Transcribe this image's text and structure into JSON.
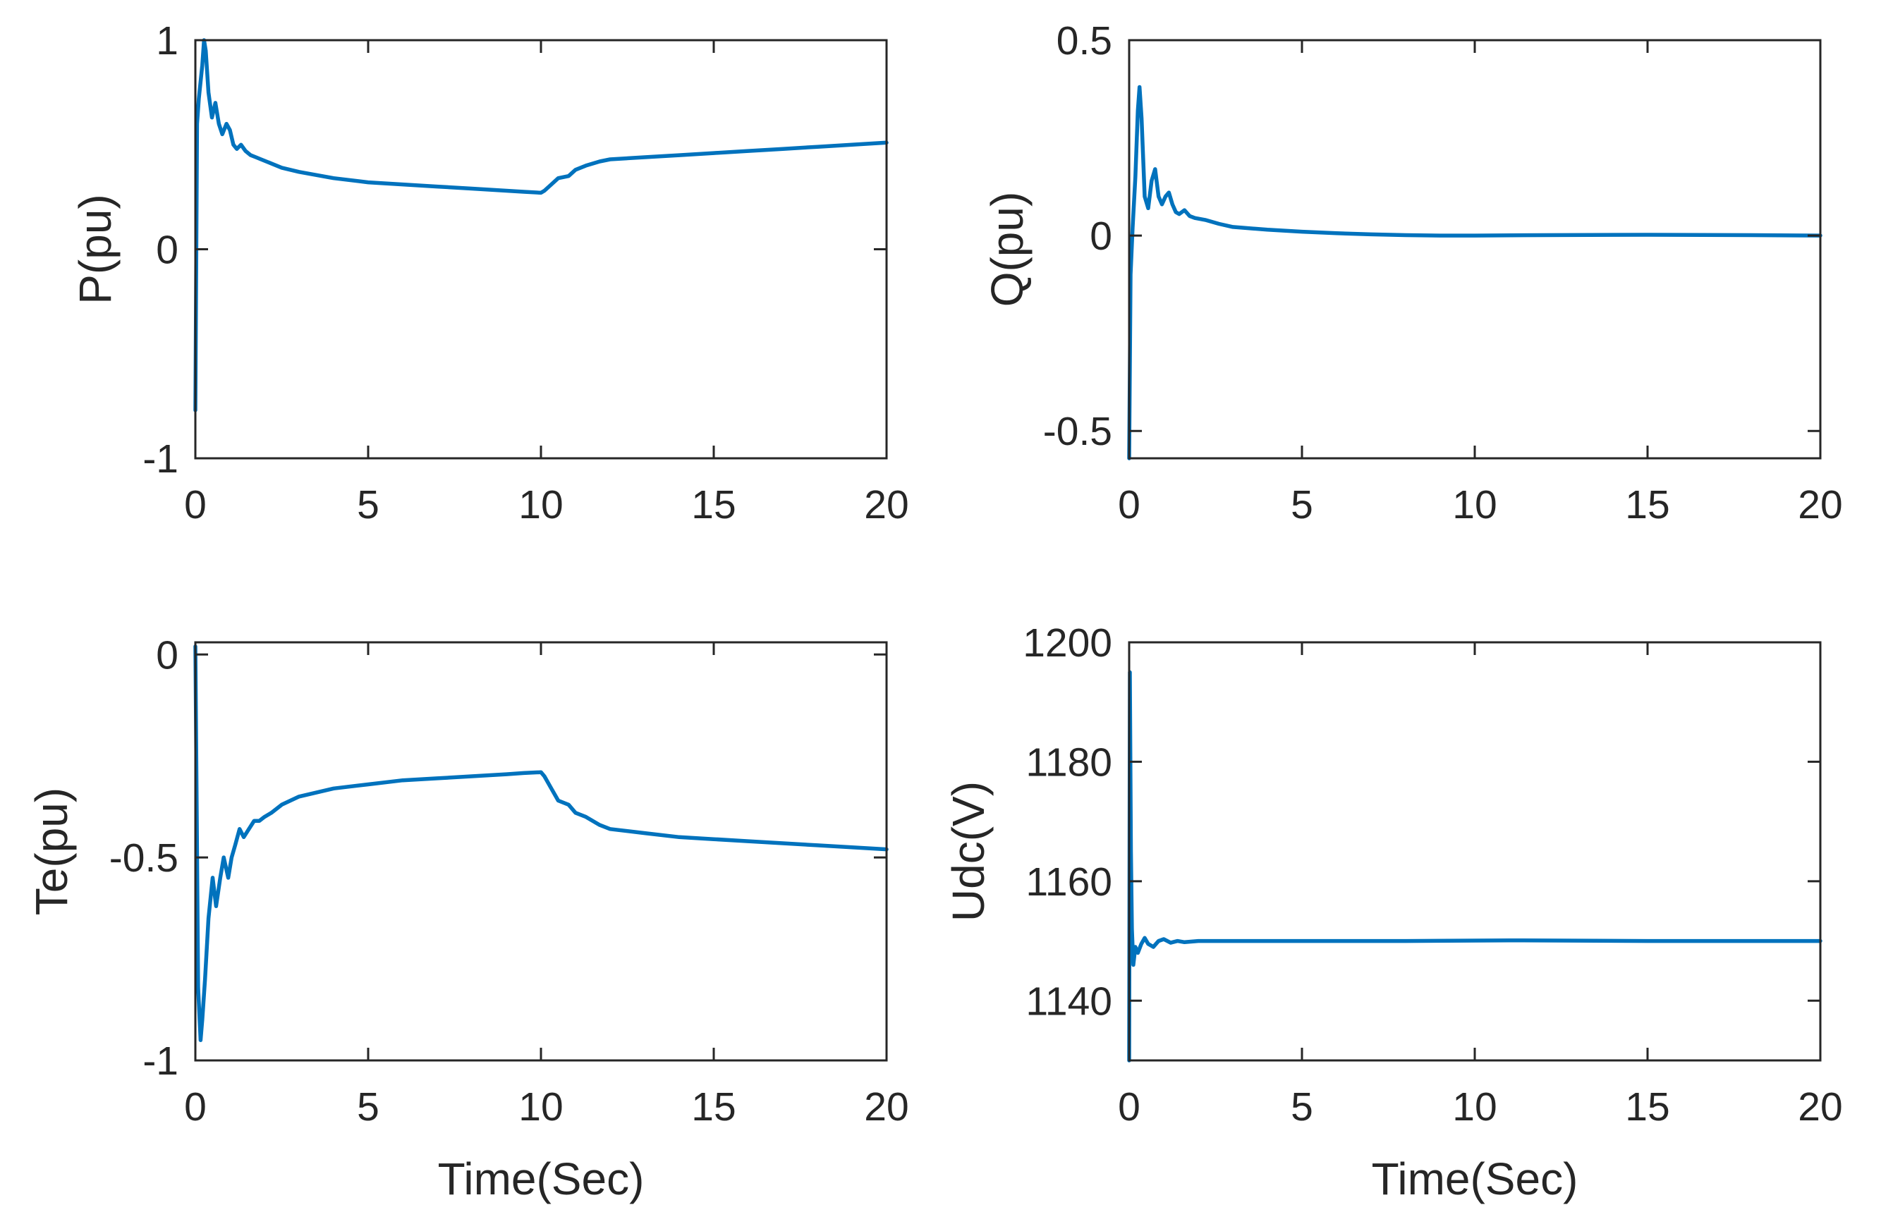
{
  "colors": {
    "line": "#0072BD",
    "axes": "#262626",
    "background": "#ffffff"
  },
  "chart_data": [
    {
      "type": "line",
      "xlabel": "",
      "ylabel": "P(pu)",
      "xlim": [
        0,
        20
      ],
      "ylim": [
        -1,
        1
      ],
      "xticks": [
        0,
        5,
        10,
        15,
        20
      ],
      "xtick_labels": [
        "0",
        "5",
        "10",
        "15",
        "20"
      ],
      "yticks": [
        -1,
        0,
        1
      ],
      "ytick_labels": [
        "-1",
        "0",
        "1"
      ],
      "series": [
        {
          "name": "P",
          "x": [
            0,
            0.05,
            0.1,
            0.2,
            0.25,
            0.3,
            0.38,
            0.48,
            0.58,
            0.68,
            0.78,
            0.9,
            1.0,
            1.1,
            1.2,
            1.32,
            1.45,
            1.6,
            1.75,
            1.9,
            2.2,
            2.5,
            3.0,
            4.0,
            5.0,
            6.0,
            7.0,
            8.0,
            9.0,
            9.5,
            10.0,
            10.1,
            10.3,
            10.5,
            10.8,
            11.0,
            11.3,
            11.7,
            12.0,
            13.0,
            14.0,
            15.0,
            16.0,
            17.0,
            18.0,
            19.0,
            20.0
          ],
          "y": [
            -0.77,
            0.6,
            0.72,
            0.88,
            1.0,
            0.95,
            0.75,
            0.63,
            0.7,
            0.6,
            0.55,
            0.6,
            0.57,
            0.5,
            0.48,
            0.5,
            0.47,
            0.45,
            0.44,
            0.43,
            0.41,
            0.39,
            0.37,
            0.34,
            0.32,
            0.31,
            0.3,
            0.29,
            0.28,
            0.275,
            0.27,
            0.28,
            0.31,
            0.34,
            0.35,
            0.38,
            0.4,
            0.42,
            0.43,
            0.44,
            0.45,
            0.46,
            0.47,
            0.48,
            0.49,
            0.5,
            0.51
          ]
        }
      ]
    },
    {
      "type": "line",
      "xlabel": "",
      "ylabel": "Q(pu)",
      "xlim": [
        0,
        20
      ],
      "ylim": [
        -0.57,
        0.5
      ],
      "xticks": [
        0,
        5,
        10,
        15,
        20
      ],
      "xtick_labels": [
        "0",
        "5",
        "10",
        "15",
        "20"
      ],
      "yticks": [
        -0.5,
        0,
        0.5
      ],
      "ytick_labels": [
        "-0.5",
        "0",
        "0.5"
      ],
      "series": [
        {
          "name": "Q",
          "x": [
            0,
            0.04,
            0.1,
            0.18,
            0.25,
            0.3,
            0.36,
            0.45,
            0.55,
            0.65,
            0.75,
            0.85,
            0.95,
            1.05,
            1.15,
            1.25,
            1.35,
            1.45,
            1.6,
            1.75,
            1.9,
            2.2,
            2.6,
            3.0,
            4.0,
            5.0,
            6.0,
            7.0,
            8.0,
            9.0,
            10.0,
            12.0,
            15.0,
            18.0,
            20.0
          ],
          "y": [
            -0.57,
            -0.1,
            0.02,
            0.15,
            0.32,
            0.38,
            0.3,
            0.1,
            0.07,
            0.14,
            0.17,
            0.1,
            0.08,
            0.1,
            0.11,
            0.08,
            0.06,
            0.055,
            0.065,
            0.05,
            0.045,
            0.04,
            0.03,
            0.022,
            0.015,
            0.01,
            0.006,
            0.003,
            0.001,
            0.0,
            0.0,
            0.001,
            0.002,
            0.001,
            0.0
          ]
        }
      ]
    },
    {
      "type": "line",
      "xlabel": "Time(Sec)",
      "ylabel": "Te(pu)",
      "xlim": [
        0,
        20
      ],
      "ylim": [
        -1,
        0.03
      ],
      "xticks": [
        0,
        5,
        10,
        15,
        20
      ],
      "xtick_labels": [
        "0",
        "5",
        "10",
        "15",
        "20"
      ],
      "yticks": [
        -1,
        -0.5,
        0
      ],
      "ytick_labels": [
        "-1",
        "-0.5",
        "0"
      ],
      "series": [
        {
          "name": "Te",
          "x": [
            0,
            0.04,
            0.08,
            0.15,
            0.2,
            0.28,
            0.38,
            0.5,
            0.6,
            0.72,
            0.82,
            0.95,
            1.05,
            1.15,
            1.28,
            1.4,
            1.55,
            1.7,
            1.85,
            2.0,
            2.2,
            2.5,
            3.0,
            4.0,
            5.0,
            6.0,
            7.0,
            8.0,
            9.0,
            9.5,
            10.0,
            10.1,
            10.3,
            10.5,
            10.8,
            11.0,
            11.3,
            11.7,
            12.0,
            13.0,
            14.0,
            15.0,
            16.0,
            17.0,
            18.0,
            19.0,
            20.0
          ],
          "y": [
            0.02,
            -0.4,
            -0.82,
            -0.95,
            -0.9,
            -0.8,
            -0.65,
            -0.55,
            -0.62,
            -0.55,
            -0.5,
            -0.55,
            -0.5,
            -0.47,
            -0.43,
            -0.45,
            -0.43,
            -0.41,
            -0.41,
            -0.4,
            -0.39,
            -0.37,
            -0.35,
            -0.33,
            -0.32,
            -0.31,
            -0.305,
            -0.3,
            -0.295,
            -0.292,
            -0.29,
            -0.3,
            -0.33,
            -0.36,
            -0.37,
            -0.39,
            -0.4,
            -0.42,
            -0.43,
            -0.44,
            -0.45,
            -0.455,
            -0.46,
            -0.465,
            -0.47,
            -0.475,
            -0.48
          ]
        }
      ]
    },
    {
      "type": "line",
      "xlabel": "Time(Sec)",
      "ylabel": "Udc(V)",
      "xlim": [
        0,
        20
      ],
      "ylim": [
        1130,
        1200
      ],
      "xticks": [
        0,
        5,
        10,
        15,
        20
      ],
      "xtick_labels": [
        "0",
        "5",
        "10",
        "15",
        "20"
      ],
      "yticks": [
        1140,
        1160,
        1180,
        1200
      ],
      "ytick_labels": [
        "1140",
        "1160",
        "1180",
        "1200"
      ],
      "series": [
        {
          "name": "Udc",
          "x": [
            0,
            0.02,
            0.05,
            0.08,
            0.12,
            0.18,
            0.25,
            0.35,
            0.45,
            0.55,
            0.7,
            0.85,
            1.0,
            1.2,
            1.4,
            1.6,
            2.0,
            3.0,
            5.0,
            8.0,
            11.0,
            15.0,
            20.0
          ],
          "y": [
            1130,
            1195,
            1165,
            1152,
            1146,
            1149,
            1148,
            1149.5,
            1150.5,
            1149.5,
            1149,
            1150,
            1150.3,
            1149.7,
            1150,
            1149.8,
            1150,
            1150,
            1150,
            1150,
            1150.1,
            1150,
            1150
          ]
        }
      ]
    }
  ]
}
